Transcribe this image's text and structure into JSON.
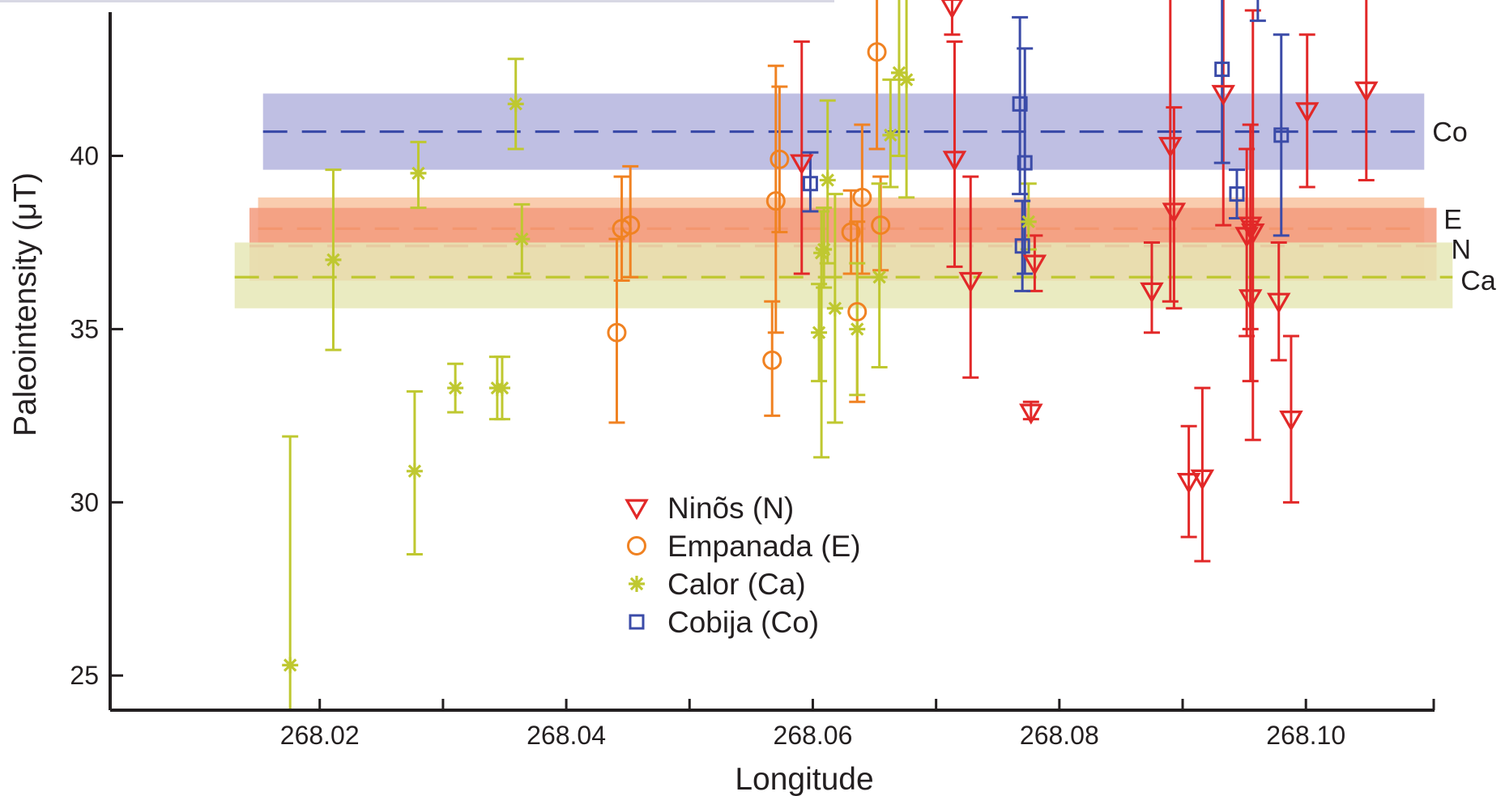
{
  "chart_data": {
    "type": "scatter",
    "xlabel": "Longitude",
    "ylabel": "Paleointensity (μT)",
    "xlim": [
      268.003,
      268.1105
    ],
    "ylim": [
      24.0,
      44.5
    ],
    "x_ticks": [
      {
        "value": 268.02,
        "label": "268.02"
      },
      {
        "value": 268.04,
        "label": "268.04"
      },
      {
        "value": 268.06,
        "label": "268.06"
      },
      {
        "value": 268.08,
        "label": "268.08"
      },
      {
        "value": 268.1,
        "label": "268.10"
      }
    ],
    "x_minor_ticks": [
      268.03,
      268.05,
      268.07,
      268.09
    ],
    "y_ticks": [
      {
        "value": 25,
        "label": "25"
      },
      {
        "value": 30,
        "label": "30"
      },
      {
        "value": 35,
        "label": "35"
      },
      {
        "value": 40,
        "label": "40"
      }
    ],
    "grid": false,
    "legend_position": "bottom-center",
    "bands": [
      {
        "label": "Co",
        "series": "Cobija (Co)",
        "mean": 40.7,
        "low": 39.6,
        "high": 41.8,
        "x_start": 268.0154,
        "x_end": 268.1096,
        "line_start": 268.0154,
        "line_end": 268.1096,
        "color": "#3b4ba8",
        "fill": "#b4b4de"
      },
      {
        "label": "E",
        "series": "Empanada (E)",
        "mean": 37.9,
        "low": 36.4,
        "high": 38.8,
        "x_start": 268.015,
        "x_end": 268.1096,
        "line_start": 268.015,
        "line_end": 268.1096,
        "color": "#f08222",
        "fill": "#f8c3a0"
      },
      {
        "label": "N",
        "series": "Ninõs (N)",
        "mean": 37.4,
        "low": 36.4,
        "high": 38.5,
        "x_start": 268.0143,
        "x_end": 268.1106,
        "line_start": 268.0143,
        "line_end": 268.1106,
        "color": "#e22828",
        "fill": "#f39a7c"
      },
      {
        "label": "Ca",
        "series": "Calor (Ca)",
        "mean": 36.5,
        "low": 35.6,
        "high": 37.5,
        "x_start": 268.0131,
        "x_end": 268.1119,
        "line_start": 268.0131,
        "line_end": 268.1119,
        "color": "#bfc830",
        "fill": "#e6e7b6"
      }
    ],
    "series": [
      {
        "name": "Ninõs (N)",
        "key": "ninos",
        "marker": "triangle-down",
        "color": "#e22828",
        "points": [
          {
            "x": 268.0591,
            "y": 39.8,
            "lo": 36.6,
            "hi": 43.3
          },
          {
            "x": 268.0713,
            "y": 44.3,
            "lo": 43.5,
            "hi": 45.0
          },
          {
            "x": 268.0715,
            "y": 39.9,
            "lo": 36.8,
            "hi": 43.3
          },
          {
            "x": 268.0728,
            "y": 36.4,
            "lo": 33.6,
            "hi": 39.4
          },
          {
            "x": 268.0777,
            "y": 32.6,
            "lo": 32.4,
            "hi": 32.9
          },
          {
            "x": 268.078,
            "y": 36.9,
            "lo": 36.1,
            "hi": 37.7
          },
          {
            "x": 268.0875,
            "y": 36.1,
            "lo": 34.9,
            "hi": 37.5
          },
          {
            "x": 268.089,
            "y": 40.3,
            "lo": 35.8,
            "hi": 44.6
          },
          {
            "x": 268.0893,
            "y": 38.4,
            "lo": 35.6,
            "hi": 41.4
          },
          {
            "x": 268.0905,
            "y": 30.6,
            "lo": 29.0,
            "hi": 32.2
          },
          {
            "x": 268.0916,
            "y": 30.7,
            "lo": 28.3,
            "hi": 33.3
          },
          {
            "x": 268.0933,
            "y": 41.8,
            "lo": 38.0,
            "hi": 45.0
          },
          {
            "x": 268.0952,
            "y": 37.7,
            "lo": 34.8,
            "hi": 40.2
          },
          {
            "x": 268.0955,
            "y": 38.0,
            "lo": 35.0,
            "hi": 40.9
          },
          {
            "x": 268.0955,
            "y": 35.9,
            "lo": 33.5,
            "hi": 38.1
          },
          {
            "x": 268.0957,
            "y": 37.8,
            "lo": 31.8,
            "hi": 44.2
          },
          {
            "x": 268.0978,
            "y": 35.8,
            "lo": 34.1,
            "hi": 37.5
          },
          {
            "x": 268.0988,
            "y": 32.4,
            "lo": 30.0,
            "hi": 34.8
          },
          {
            "x": 268.1001,
            "y": 41.3,
            "lo": 39.1,
            "hi": 43.5
          },
          {
            "x": 268.1049,
            "y": 41.9,
            "lo": 39.3,
            "hi": 45.0
          }
        ]
      },
      {
        "name": "Empanada (E)",
        "key": "empanada",
        "marker": "circle",
        "color": "#f08222",
        "points": [
          {
            "x": 268.0441,
            "y": 34.9,
            "lo": 32.3,
            "hi": 37.6
          },
          {
            "x": 268.0445,
            "y": 37.9,
            "lo": 36.4,
            "hi": 39.4
          },
          {
            "x": 268.0452,
            "y": 38.0,
            "lo": 36.5,
            "hi": 39.7
          },
          {
            "x": 268.0567,
            "y": 34.1,
            "lo": 32.5,
            "hi": 35.8
          },
          {
            "x": 268.057,
            "y": 38.7,
            "lo": 34.9,
            "hi": 42.6
          },
          {
            "x": 268.0573,
            "y": 39.9,
            "lo": 37.8,
            "hi": 42.0
          },
          {
            "x": 268.0631,
            "y": 37.8,
            "lo": 36.6,
            "hi": 39.0
          },
          {
            "x": 268.0636,
            "y": 35.5,
            "lo": 32.9,
            "hi": 38.1
          },
          {
            "x": 268.064,
            "y": 38.8,
            "lo": 36.6,
            "hi": 40.9
          },
          {
            "x": 268.0652,
            "y": 43.0,
            "lo": 40.2,
            "hi": 45.0
          },
          {
            "x": 268.0655,
            "y": 38.0,
            "lo": 36.7,
            "hi": 39.4
          }
        ]
      },
      {
        "name": "Calor (Ca)",
        "key": "calor",
        "marker": "asterisk",
        "color": "#bfc830",
        "points": [
          {
            "x": 268.0176,
            "y": 25.3,
            "lo": 24.0,
            "hi": 31.9
          },
          {
            "x": 268.0211,
            "y": 37.0,
            "lo": 34.4,
            "hi": 39.6
          },
          {
            "x": 268.0277,
            "y": 30.9,
            "lo": 28.5,
            "hi": 33.2
          },
          {
            "x": 268.028,
            "y": 39.5,
            "lo": 38.5,
            "hi": 40.4
          },
          {
            "x": 268.031,
            "y": 33.3,
            "lo": 32.6,
            "hi": 34.0
          },
          {
            "x": 268.0344,
            "y": 33.3,
            "lo": 32.4,
            "hi": 34.2
          },
          {
            "x": 268.0348,
            "y": 33.3,
            "lo": 32.4,
            "hi": 34.2
          },
          {
            "x": 268.0359,
            "y": 41.5,
            "lo": 40.2,
            "hi": 42.8
          },
          {
            "x": 268.0364,
            "y": 37.6,
            "lo": 36.6,
            "hi": 38.6
          },
          {
            "x": 268.0605,
            "y": 34.9,
            "lo": 33.5,
            "hi": 36.3
          },
          {
            "x": 268.0607,
            "y": 37.2,
            "lo": 31.3,
            "hi": 38.4
          },
          {
            "x": 268.0609,
            "y": 37.3,
            "lo": 36.2,
            "hi": 38.5
          },
          {
            "x": 268.0612,
            "y": 39.3,
            "lo": 36.9,
            "hi": 41.6
          },
          {
            "x": 268.0618,
            "y": 35.6,
            "lo": 32.3,
            "hi": 38.9
          },
          {
            "x": 268.0636,
            "y": 35.0,
            "lo": 33.1,
            "hi": 36.9
          },
          {
            "x": 268.0654,
            "y": 36.5,
            "lo": 33.9,
            "hi": 39.2
          },
          {
            "x": 268.0663,
            "y": 40.6,
            "lo": 39.1,
            "hi": 42.2
          },
          {
            "x": 268.067,
            "y": 42.4,
            "lo": 40.0,
            "hi": 45.0
          },
          {
            "x": 268.0676,
            "y": 42.2,
            "lo": 38.8,
            "hi": 45.0
          },
          {
            "x": 268.0775,
            "y": 38.1,
            "lo": 37.3,
            "hi": 39.2
          }
        ]
      },
      {
        "name": "Cobija (Co)",
        "key": "cobija",
        "marker": "square",
        "color": "#3b4ba8",
        "points": [
          {
            "x": 268.0598,
            "y": 39.2,
            "lo": 38.4,
            "hi": 40.1
          },
          {
            "x": 268.0768,
            "y": 41.5,
            "lo": 38.9,
            "hi": 44.0
          },
          {
            "x": 268.077,
            "y": 37.4,
            "lo": 36.1,
            "hi": 38.7
          },
          {
            "x": 268.0772,
            "y": 39.8,
            "lo": 36.6,
            "hi": 43.1
          },
          {
            "x": 268.0932,
            "y": 42.5,
            "lo": 39.8,
            "hi": 45.0
          },
          {
            "x": 268.0944,
            "y": 38.9,
            "lo": 38.2,
            "hi": 39.6
          },
          {
            "x": 268.0961,
            "y": 45.0,
            "lo": 43.9,
            "hi": 45.0
          },
          {
            "x": 268.098,
            "y": 40.6,
            "lo": 37.7,
            "hi": 43.5
          }
        ]
      }
    ]
  }
}
